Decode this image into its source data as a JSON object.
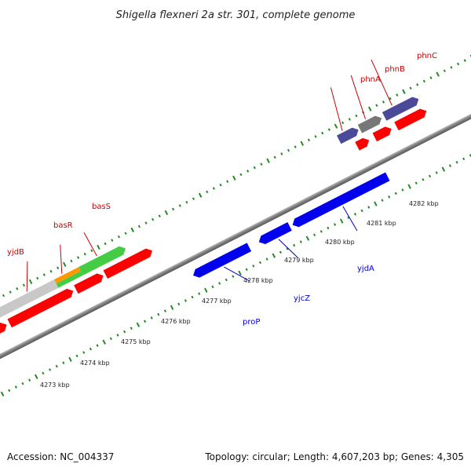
{
  "title": "Shigella flexneri 2a str. 301, complete genome",
  "footer": {
    "accession": "Accession: NC_004337",
    "summary": "Topology: circular; Length: 4,607,203 bp; Genes: 4,305"
  },
  "scale_labels": [
    {
      "name": "tick-label-4273",
      "text": "4273 kbp"
    },
    {
      "name": "tick-label-4274",
      "text": "4274 kbp"
    },
    {
      "name": "tick-label-4275",
      "text": "4275 kbp"
    },
    {
      "name": "tick-label-4276",
      "text": "4276 kbp"
    },
    {
      "name": "tick-label-4277",
      "text": "4277 kbp"
    },
    {
      "name": "tick-label-4278",
      "text": "4278 kbp"
    },
    {
      "name": "tick-label-4279",
      "text": "4279 kbp"
    },
    {
      "name": "tick-label-4280",
      "text": "4280 kbp"
    },
    {
      "name": "tick-label-4281",
      "text": "4281 kbp"
    },
    {
      "name": "tick-label-4282",
      "text": "4282 kbp"
    }
  ],
  "gene_labels_forward": [
    {
      "name": "gene-label-yjdB",
      "text": "yjdB"
    },
    {
      "name": "gene-label-basR",
      "text": "basR"
    },
    {
      "name": "gene-label-basS",
      "text": "basS"
    },
    {
      "name": "gene-label-phnA",
      "text": "phnA"
    },
    {
      "name": "gene-label-phnB",
      "text": "phnB"
    },
    {
      "name": "gene-label-phnC",
      "text": "phnC"
    }
  ],
  "gene_labels_reverse": [
    {
      "name": "gene-label-proP",
      "text": "proP"
    },
    {
      "name": "gene-label-yjcZ",
      "text": "yjcZ"
    },
    {
      "name": "gene-label-yjdA",
      "text": "yjdA"
    }
  ],
  "colors": {
    "forward_label": "#cc0000",
    "reverse_label": "#0000cc",
    "tick": "#228b22",
    "backbone": "#888888",
    "cds_red": "#ff0000",
    "cds_blue": "#0000ee",
    "gene_gray": "#c8c8c8",
    "gene_green": "#44cc44",
    "gene_orange": "#ff9900",
    "gene_steelblue": "#4a86b8",
    "gene_navy": "#4a4a99",
    "gene_darkgray": "#777777"
  }
}
